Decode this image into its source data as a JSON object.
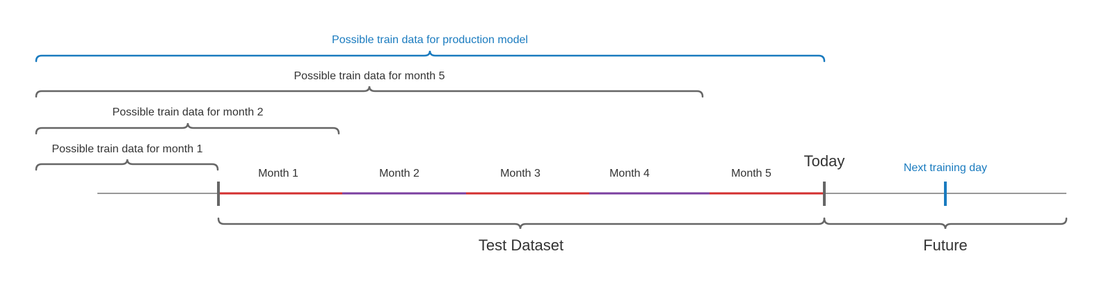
{
  "braces": [
    {
      "label": "Possible train data for production model"
    },
    {
      "label": "Possible train data for month 5"
    },
    {
      "label": "Possible train data for month 2"
    },
    {
      "label": "Possible train data for month 1"
    }
  ],
  "months": [
    "Month 1",
    "Month 2",
    "Month 3",
    "Month 4",
    "Month 5"
  ],
  "today": "Today",
  "next_training_day": "Next training day",
  "test_dataset": "Test Dataset",
  "future": "Future"
}
